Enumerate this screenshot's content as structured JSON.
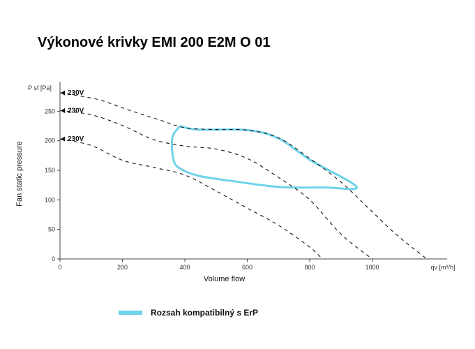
{
  "title": "Výkonové krivky EMI 200 E2M O 01",
  "colors": {
    "erp": "#6dd3ea",
    "curve": "#111111",
    "axis": "#444444"
  },
  "chart_data": {
    "type": "line",
    "title": "Výkonové krivky EMI 200 E2M O 01",
    "xlabel": "Volume flow",
    "ylabel": "Fan static pressure",
    "x_unit": "qv [m³/h]",
    "y_unit": "P sf [Pa]",
    "xlim": [
      0,
      1240
    ],
    "ylim": [
      0,
      300
    ],
    "xticks": [
      0,
      200,
      400,
      600,
      800,
      1000
    ],
    "yticks": [
      0,
      50,
      100,
      150,
      200,
      250
    ],
    "grid": false,
    "series": [
      {
        "name": "230V",
        "label_at": [
          0,
          281
        ],
        "points": [
          [
            0,
            281
          ],
          [
            120,
            270
          ],
          [
            220,
            252
          ],
          [
            320,
            235
          ],
          [
            400,
            222
          ],
          [
            500,
            219
          ],
          [
            600,
            218
          ],
          [
            700,
            205
          ],
          [
            800,
            170
          ],
          [
            900,
            130
          ],
          [
            1000,
            80
          ],
          [
            1080,
            40
          ],
          [
            1175,
            0
          ]
        ]
      },
      {
        "name": "230V",
        "label_at": [
          0,
          251
        ],
        "points": [
          [
            0,
            251
          ],
          [
            100,
            244
          ],
          [
            200,
            226
          ],
          [
            300,
            202
          ],
          [
            400,
            191
          ],
          [
            500,
            186
          ],
          [
            600,
            170
          ],
          [
            700,
            138
          ],
          [
            800,
            100
          ],
          [
            900,
            42
          ],
          [
            1000,
            0
          ]
        ]
      },
      {
        "name": "230V",
        "label_at": [
          0,
          203
        ],
        "points": [
          [
            0,
            203
          ],
          [
            100,
            192
          ],
          [
            200,
            167
          ],
          [
            300,
            155
          ],
          [
            400,
            142
          ],
          [
            500,
            115
          ],
          [
            600,
            86
          ],
          [
            700,
            57
          ],
          [
            800,
            20
          ],
          [
            840,
            0
          ]
        ]
      }
    ],
    "erp_region": {
      "label": "Rozsah kompatibilný s ErP",
      "points": [
        [
          385,
          225
        ],
        [
          440,
          219
        ],
        [
          600,
          218
        ],
        [
          700,
          204
        ],
        [
          800,
          168
        ],
        [
          950,
          122
        ],
        [
          850,
          121
        ],
        [
          700,
          122
        ],
        [
          550,
          132
        ],
        [
          450,
          140
        ],
        [
          395,
          150
        ],
        [
          365,
          165
        ],
        [
          360,
          205
        ],
        [
          385,
          225
        ]
      ]
    }
  },
  "legend": {
    "label": "Rozsah kompatibilný s ErP"
  }
}
